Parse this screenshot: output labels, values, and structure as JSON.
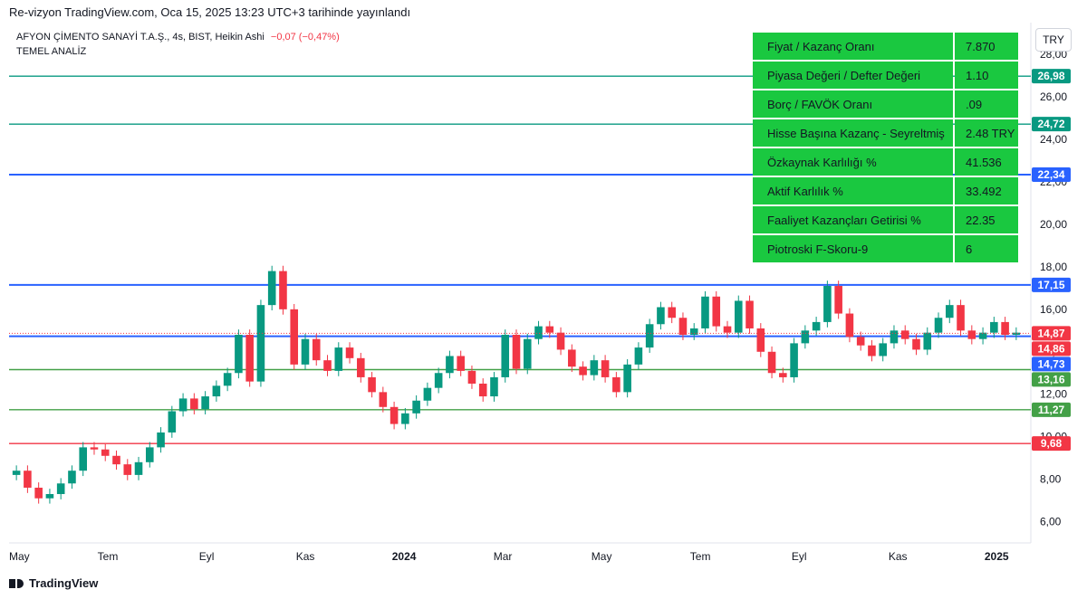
{
  "header": {
    "published": "Re-vizyon TradingView.com, Oca 15, 2025 13:23 UTC+3 tarihinde yayınlandı",
    "symbol": "AFYON ÇİMENTO SANAYİ T.A.Ş., 4s, BIST, Heikin Ashi",
    "change": "−0,07 (−0,47%)",
    "subtitle": "TEMEL ANALİZ",
    "currency": "TRY"
  },
  "table": [
    {
      "label": "Fiyat / Kazanç Oranı",
      "value": "7.870"
    },
    {
      "label": "Piyasa Değeri / Defter Değeri",
      "value": "1.10"
    },
    {
      "label": "Borç / FAVÖK Oranı",
      "value": ".09"
    },
    {
      "label": "Hisse Başına Kazanç - Seyreltmiş",
      "value": "2.48 TRY"
    },
    {
      "label": "Özkaynak Karlılığı %",
      "value": "41.536"
    },
    {
      "label": "Aktif Karlılık %",
      "value": "33.492"
    },
    {
      "label": "Faaliyet Kazançları Getirisi %",
      "value": "22.35"
    },
    {
      "label": "Piotroski F-Skoru-9",
      "value": "6"
    }
  ],
  "footer": {
    "brand": "TradingView"
  },
  "chart_data": {
    "type": "line",
    "title": "",
    "ylim": [
      5.0,
      29.5
    ],
    "y_ticks": [
      6,
      8,
      10,
      12,
      14,
      16,
      18,
      20,
      22,
      24,
      26,
      28
    ],
    "y_tick_labels": [
      "6,00",
      "8,00",
      "10,00",
      "12,00",
      "14,00",
      "16,00",
      "18,00",
      "20,00",
      "22,00",
      "24,00",
      "26,00",
      "28,00"
    ],
    "x_labels": [
      "May",
      "Tem",
      "Eyl",
      "Kas",
      "2024",
      "Mar",
      "May",
      "Tem",
      "Eyl",
      "Kas",
      "2025"
    ],
    "x_label_bold": [
      false,
      false,
      false,
      false,
      true,
      false,
      false,
      false,
      false,
      false,
      true
    ],
    "x_label_index": [
      0,
      10,
      20,
      30,
      40,
      50,
      60,
      70,
      80,
      90,
      100
    ],
    "x_label_max_index": 102,
    "levels": [
      {
        "value": 26.98,
        "label": "26,98",
        "color": "#089981"
      },
      {
        "value": 24.72,
        "label": "24,72",
        "color": "#089981"
      },
      {
        "value": 22.34,
        "label": "22,34",
        "color": "#2962ff"
      },
      {
        "value": 17.15,
        "label": "17,15",
        "color": "#2962ff"
      },
      {
        "value": 14.73,
        "label": "14,73",
        "color": "#2962ff"
      },
      {
        "value": 13.16,
        "label": "13,16",
        "color": "#43a047"
      },
      {
        "value": 11.27,
        "label": "11,27",
        "color": "#43a047"
      },
      {
        "value": 9.68,
        "label": "9,68",
        "color": "#f23645"
      }
    ],
    "price_badges": [
      {
        "value": 14.87,
        "label": "14,87",
        "color": "#f23645"
      },
      {
        "value": 14.86,
        "label": "14,86",
        "color": "#f23645"
      }
    ],
    "series": [
      {
        "up_color": "#089981",
        "down_color": "#f23645",
        "values": [
          8.4,
          7.6,
          7.1,
          7.3,
          7.8,
          8.4,
          9.5,
          9.4,
          9.1,
          8.7,
          8.2,
          8.8,
          9.5,
          10.2,
          11.2,
          11.8,
          11.3,
          11.9,
          12.4,
          13.0,
          14.8,
          12.6,
          16.2,
          17.8,
          16.0,
          13.4,
          14.6,
          13.6,
          13.1,
          14.2,
          13.7,
          12.8,
          12.1,
          11.4,
          10.6,
          11.1,
          11.7,
          12.3,
          13.0,
          13.8,
          13.1,
          12.5,
          11.9,
          12.8,
          14.8,
          13.2,
          14.6,
          15.2,
          14.9,
          14.1,
          13.3,
          12.9,
          13.6,
          12.8,
          12.1,
          13.4,
          14.2,
          15.3,
          16.1,
          15.6,
          14.8,
          15.1,
          16.6,
          15.2,
          14.9,
          16.4,
          15.1,
          14.0,
          13.0,
          12.8,
          14.4,
          15.0,
          15.4,
          17.1,
          15.8,
          14.7,
          14.3,
          13.8,
          14.4,
          15.0,
          14.6,
          14.1,
          14.9,
          15.6,
          16.2,
          15.0,
          14.6,
          14.9,
          15.4,
          14.8,
          14.9
        ]
      }
    ]
  }
}
